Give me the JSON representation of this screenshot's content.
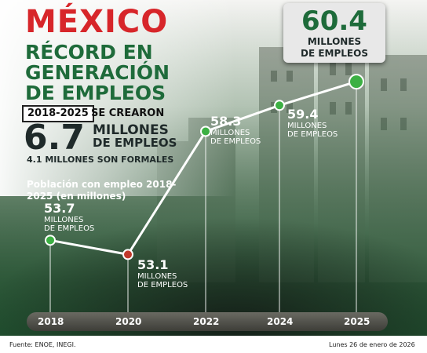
{
  "header": {
    "title_line1": "MÉXICO",
    "title_line2": "RÉCORD EN",
    "title_line3": "GENERACIÓN",
    "title_line4": "DE EMPLEOS",
    "period": "2018-2025",
    "created_label": "SE CREARON",
    "created_value": "6.7",
    "created_unit_line1": "MILLONES",
    "created_unit_line2": "DE EMPLEOS",
    "formal_note": "4.1 MILLONES SON FORMALES"
  },
  "chart_subtitle": "Población con empleo 2018-2025 (en millones)",
  "peak_callout": {
    "value": "60.4",
    "unit_line1": "MILLONES",
    "unit_line2": "DE EMPLEOS"
  },
  "chart_data": {
    "type": "line",
    "title": "",
    "subtitle": "Población con empleo 2018-2025 (en millones)",
    "x": [
      "2018",
      "2020",
      "2022",
      "2024",
      "2025"
    ],
    "series": [
      {
        "values": [
          53.7,
          53.1,
          58.3,
          59.4,
          60.4
        ]
      }
    ],
    "value_labels": [
      "53.7",
      "53.1",
      "58.3",
      "59.4",
      "60.4"
    ],
    "unit_label": [
      "MILLONES",
      "DE EMPLEOS"
    ],
    "highlight_color": "#c0392b",
    "line_color": "#ffffff",
    "point_color": "#3cb043",
    "grid": false
  },
  "footer": {
    "source": "Fuente: ENOE, INEGI.",
    "date": "Lunes 26 de enero de 2026"
  },
  "colors": {
    "red": "#d7262a",
    "green": "#1e6b3a",
    "dark": "#1f2a2a"
  }
}
